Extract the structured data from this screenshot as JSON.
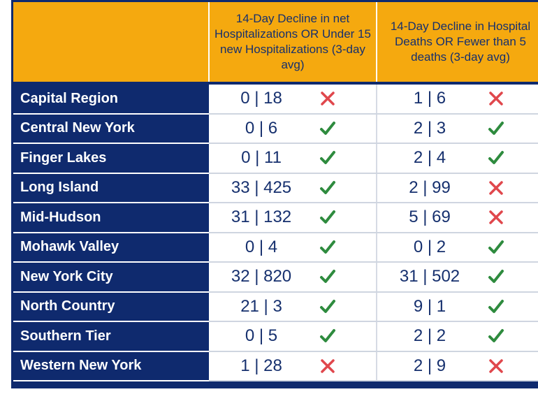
{
  "header": {
    "col1": "",
    "col2": "14-Day Decline in net Hospitalizations OR Under 15 new Hospitalizations (3-day avg)",
    "col3": "14-Day Decline in Hospital Deaths OR Fewer than 5 deaths (3-day avg)"
  },
  "colors": {
    "check": "#2e8b3e",
    "cross": "#e0474c",
    "navy": "#0f2a6e",
    "gold": "#f5a90f"
  },
  "rows": [
    {
      "region": "Capital Region",
      "hosp": "0 | 18",
      "hosp_met": false,
      "deaths": "1 | 6",
      "deaths_met": false
    },
    {
      "region": "Central New York",
      "hosp": "0 | 6",
      "hosp_met": true,
      "deaths": "2 | 3",
      "deaths_met": true
    },
    {
      "region": "Finger Lakes",
      "hosp": "0 | 11",
      "hosp_met": true,
      "deaths": "2 | 4",
      "deaths_met": true
    },
    {
      "region": "Long Island",
      "hosp": "33 | 425",
      "hosp_met": true,
      "deaths": "2 | 99",
      "deaths_met": false
    },
    {
      "region": "Mid-Hudson",
      "hosp": "31 | 132",
      "hosp_met": true,
      "deaths": "5 | 69",
      "deaths_met": false
    },
    {
      "region": "Mohawk Valley",
      "hosp": "0 | 4",
      "hosp_met": true,
      "deaths": "0 | 2",
      "deaths_met": true
    },
    {
      "region": "New York City",
      "hosp": "32 | 820",
      "hosp_met": true,
      "deaths": "31 | 502",
      "deaths_met": true
    },
    {
      "region": "North Country",
      "hosp": "21 | 3",
      "hosp_met": true,
      "deaths": "9 | 1",
      "deaths_met": true
    },
    {
      "region": "Southern Tier",
      "hosp": "0 | 5",
      "hosp_met": true,
      "deaths": "2 | 2",
      "deaths_met": true
    },
    {
      "region": "Western New York",
      "hosp": "1 | 28",
      "hosp_met": false,
      "deaths": "2 | 9",
      "deaths_met": false
    }
  ]
}
